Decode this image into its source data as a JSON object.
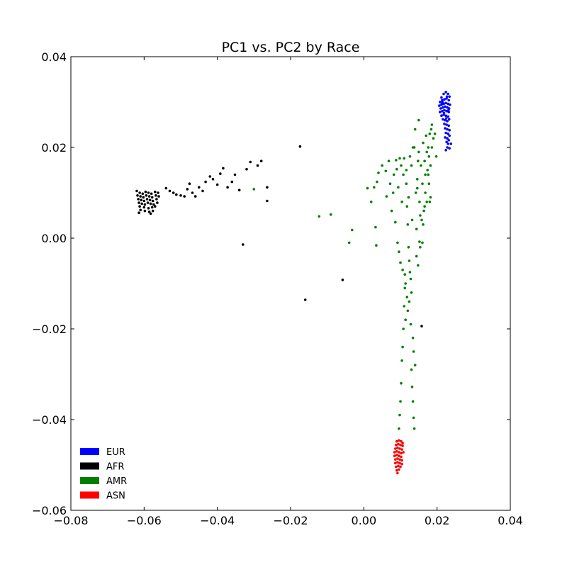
{
  "chart_data": {
    "type": "scatter",
    "title": "PC1 vs. PC2 by Race",
    "xlabel": "",
    "ylabel": "",
    "xlim": [
      -0.08,
      0.04
    ],
    "ylim": [
      -0.06,
      0.04
    ],
    "x_ticks": [
      -0.08,
      -0.06,
      -0.04,
      -0.02,
      0.0,
      0.02,
      0.04
    ],
    "y_ticks": [
      -0.06,
      -0.04,
      -0.02,
      0.0,
      0.02,
      0.04
    ],
    "x_tick_labels": [
      "−0.08",
      "−0.06",
      "−0.04",
      "−0.02",
      "0.00",
      "0.02",
      "0.04"
    ],
    "y_tick_labels": [
      "−0.06",
      "−0.04",
      "−0.02",
      "0.00",
      "0.02",
      "0.04"
    ],
    "grid": false,
    "legend_position": "bottom-left",
    "series": [
      {
        "name": "EUR",
        "color": "#0000ff",
        "points": [
          [
            0.0212,
            0.031
          ],
          [
            0.0218,
            0.0318
          ],
          [
            0.0224,
            0.0322
          ],
          [
            0.023,
            0.0318
          ],
          [
            0.0234,
            0.0312
          ],
          [
            0.0208,
            0.03
          ],
          [
            0.0214,
            0.0304
          ],
          [
            0.022,
            0.0306
          ],
          [
            0.0226,
            0.0308
          ],
          [
            0.0232,
            0.0304
          ],
          [
            0.0206,
            0.0292
          ],
          [
            0.0212,
            0.0294
          ],
          [
            0.0218,
            0.0296
          ],
          [
            0.0224,
            0.0298
          ],
          [
            0.023,
            0.0296
          ],
          [
            0.0235,
            0.0294
          ],
          [
            0.021,
            0.0286
          ],
          [
            0.0216,
            0.0288
          ],
          [
            0.0222,
            0.029
          ],
          [
            0.0228,
            0.0288
          ],
          [
            0.0233,
            0.0286
          ],
          [
            0.0208,
            0.0278
          ],
          [
            0.0214,
            0.028
          ],
          [
            0.022,
            0.0282
          ],
          [
            0.0226,
            0.028
          ],
          [
            0.0232,
            0.0278
          ],
          [
            0.0212,
            0.027
          ],
          [
            0.0218,
            0.0272
          ],
          [
            0.0224,
            0.027
          ],
          [
            0.023,
            0.0268
          ],
          [
            0.0216,
            0.0262
          ],
          [
            0.0222,
            0.026
          ],
          [
            0.0228,
            0.0258
          ],
          [
            0.0233,
            0.0262
          ],
          [
            0.022,
            0.0252
          ],
          [
            0.0226,
            0.025
          ],
          [
            0.0232,
            0.0248
          ],
          [
            0.0222,
            0.0242
          ],
          [
            0.0228,
            0.024
          ],
          [
            0.0234,
            0.0238
          ],
          [
            0.0224,
            0.0232
          ],
          [
            0.023,
            0.023
          ],
          [
            0.0234,
            0.0226
          ],
          [
            0.0222,
            0.0222
          ],
          [
            0.0228,
            0.022
          ],
          [
            0.0232,
            0.0216
          ],
          [
            0.0226,
            0.0212
          ],
          [
            0.023,
            0.0208
          ],
          [
            0.0238,
            0.0208
          ],
          [
            0.0228,
            0.02
          ],
          [
            0.0234,
            0.0198
          ],
          [
            0.0224,
            0.0194
          ],
          [
            0.0215,
            0.03
          ],
          [
            0.0227,
            0.0312
          ],
          [
            0.0219,
            0.0276
          ],
          [
            0.0231,
            0.0282
          ],
          [
            0.0225,
            0.0264
          ],
          [
            0.0213,
            0.0298
          ]
        ]
      },
      {
        "name": "AFR",
        "color": "#000000",
        "points": [
          [
            -0.062,
            0.0104
          ],
          [
            -0.0612,
            0.01
          ],
          [
            -0.0604,
            0.0098
          ],
          [
            -0.0596,
            0.0102
          ],
          [
            -0.0588,
            0.01
          ],
          [
            -0.058,
            0.0098
          ],
          [
            -0.057,
            0.0102
          ],
          [
            -0.0562,
            0.01
          ],
          [
            -0.0618,
            0.0094
          ],
          [
            -0.061,
            0.0092
          ],
          [
            -0.0602,
            0.009
          ],
          [
            -0.0594,
            0.0094
          ],
          [
            -0.0586,
            0.0092
          ],
          [
            -0.0578,
            0.009
          ],
          [
            -0.0568,
            0.0094
          ],
          [
            -0.056,
            0.0092
          ],
          [
            -0.0616,
            0.0086
          ],
          [
            -0.0608,
            0.0084
          ],
          [
            -0.06,
            0.0082
          ],
          [
            -0.0592,
            0.0086
          ],
          [
            -0.0584,
            0.0084
          ],
          [
            -0.0576,
            0.0082
          ],
          [
            -0.0566,
            0.0086
          ],
          [
            -0.0614,
            0.0078
          ],
          [
            -0.0606,
            0.0076
          ],
          [
            -0.0598,
            0.0074
          ],
          [
            -0.059,
            0.0078
          ],
          [
            -0.0582,
            0.0076
          ],
          [
            -0.0574,
            0.0074
          ],
          [
            -0.0564,
            0.0078
          ],
          [
            -0.0612,
            0.007
          ],
          [
            -0.06,
            0.0068
          ],
          [
            -0.0588,
            0.0066
          ],
          [
            -0.0578,
            0.0068
          ],
          [
            -0.057,
            0.007
          ],
          [
            -0.061,
            0.0062
          ],
          [
            -0.0598,
            0.006
          ],
          [
            -0.0586,
            0.0058
          ],
          [
            -0.0576,
            0.006
          ],
          [
            -0.0614,
            0.0056
          ],
          [
            -0.0582,
            0.0054
          ],
          [
            -0.054,
            0.011
          ],
          [
            -0.053,
            0.0104
          ],
          [
            -0.052,
            0.01
          ],
          [
            -0.0512,
            0.0096
          ],
          [
            -0.05,
            0.0094
          ],
          [
            -0.049,
            0.0092
          ],
          [
            -0.0482,
            0.0108
          ],
          [
            -0.0476,
            0.012
          ],
          [
            -0.0468,
            0.01
          ],
          [
            -0.046,
            0.0092
          ],
          [
            -0.045,
            0.0112
          ],
          [
            -0.044,
            0.0104
          ],
          [
            -0.0432,
            0.0124
          ],
          [
            -0.042,
            0.0136
          ],
          [
            -0.0412,
            0.013
          ],
          [
            -0.04,
            0.0118
          ],
          [
            -0.0392,
            0.0142
          ],
          [
            -0.0384,
            0.0154
          ],
          [
            -0.0372,
            0.0112
          ],
          [
            -0.036,
            0.0124
          ],
          [
            -0.0352,
            0.014
          ],
          [
            -0.034,
            0.0106
          ],
          [
            -0.032,
            0.0152
          ],
          [
            -0.031,
            0.0168
          ],
          [
            -0.029,
            0.016
          ],
          [
            -0.028,
            0.017
          ],
          [
            -0.0264,
            0.0112
          ],
          [
            -0.0264,
            0.0082
          ],
          [
            -0.033,
            -0.0014
          ],
          [
            -0.0174,
            0.0202
          ],
          [
            -0.016,
            -0.0136
          ],
          [
            -0.0058,
            -0.0092
          ],
          [
            0.0158,
            -0.0194
          ]
        ]
      },
      {
        "name": "AMR",
        "color": "#008000",
        "points": [
          [
            -0.03,
            0.0108
          ],
          [
            -0.0122,
            0.0048
          ],
          [
            -0.009,
            0.0052
          ],
          [
            -0.004,
            -0.001
          ],
          [
            -0.0032,
            0.0018
          ],
          [
            0.001,
            0.011
          ],
          [
            0.002,
            0.008
          ],
          [
            0.0028,
            0.0112
          ],
          [
            0.0032,
            0.0024
          ],
          [
            0.0034,
            -0.0016
          ],
          [
            0.0036,
            0.0124
          ],
          [
            0.004,
            0.0144
          ],
          [
            0.005,
            0.016
          ],
          [
            0.006,
            0.0148
          ],
          [
            0.0062,
            0.0092
          ],
          [
            0.0068,
            0.017
          ],
          [
            0.0072,
            0.012
          ],
          [
            0.0076,
            0.006
          ],
          [
            0.008,
            0.01
          ],
          [
            0.0082,
            0.014
          ],
          [
            0.0086,
            0.0035
          ],
          [
            0.0088,
            0.0172
          ],
          [
            0.009,
            0.0152
          ],
          [
            0.0092,
            -0.001
          ],
          [
            0.0094,
            0.0112
          ],
          [
            0.0096,
            -0.003
          ],
          [
            0.0098,
            0.0176
          ],
          [
            0.01,
            -0.0054
          ],
          [
            0.0102,
            0.016
          ],
          [
            0.0104,
            0.008
          ],
          [
            0.0106,
            -0.007
          ],
          [
            0.0108,
            0.014
          ],
          [
            0.011,
            0.0176
          ],
          [
            0.0112,
            -0.008
          ],
          [
            0.0114,
            -0.01
          ],
          [
            0.0116,
            0.012
          ],
          [
            0.0118,
            -0.013
          ],
          [
            0.012,
            -0.016
          ],
          [
            0.0122,
            0.009
          ],
          [
            0.0124,
            -0.014
          ],
          [
            0.0126,
            0.018
          ],
          [
            0.0128,
            -0.019
          ],
          [
            0.013,
            0.016
          ],
          [
            0.0132,
            0.004
          ],
          [
            0.0134,
            -0.022
          ],
          [
            0.0136,
            -0.025
          ],
          [
            0.0138,
            0.02
          ],
          [
            0.014,
            -0.028
          ],
          [
            0.0142,
            0.01
          ],
          [
            0.0144,
            -0.004
          ],
          [
            0.0146,
            0.013
          ],
          [
            0.0148,
            -0.006
          ],
          [
            0.015,
            0.019
          ],
          [
            0.0152,
            0.008
          ],
          [
            0.0154,
            -0.002
          ],
          [
            0.0156,
            0.016
          ],
          [
            0.0158,
            0.004
          ],
          [
            0.016,
            0.012
          ],
          [
            0.0162,
            0.021
          ],
          [
            0.0164,
            0.006
          ],
          [
            0.0166,
            0.017
          ],
          [
            0.0168,
            0.01
          ],
          [
            0.017,
            0.0226
          ],
          [
            0.0172,
            0.008
          ],
          [
            0.0174,
            0.015
          ],
          [
            0.0176,
            0.02
          ],
          [
            0.0178,
            0.012
          ],
          [
            0.018,
            0.023
          ],
          [
            0.0182,
            0.016
          ],
          [
            0.0184,
            0.024
          ],
          [
            0.0186,
            0.025
          ],
          [
            0.019,
            0.022
          ],
          [
            0.0194,
            0.023
          ],
          [
            0.0198,
            0.018
          ],
          [
            0.015,
            0.026
          ],
          [
            0.014,
            0.024
          ],
          [
            0.0134,
            0.02
          ],
          [
            0.013,
            -0.012
          ],
          [
            0.0128,
            -0.009
          ],
          [
            0.0126,
            -0.0075
          ],
          [
            0.0124,
            -0.005
          ],
          [
            0.0122,
            -0.002
          ],
          [
            0.012,
            0.003
          ],
          [
            0.0118,
            0.007
          ],
          [
            0.0116,
            0.015
          ],
          [
            0.0114,
            -0.018
          ],
          [
            0.0112,
            -0.011
          ],
          [
            0.011,
            -0.015
          ],
          [
            0.0108,
            -0.02
          ],
          [
            0.0106,
            -0.024
          ],
          [
            0.0104,
            -0.027
          ],
          [
            0.0102,
            -0.032
          ],
          [
            0.01,
            -0.036
          ],
          [
            0.0098,
            -0.039
          ],
          [
            0.0096,
            -0.042
          ],
          [
            0.013,
            -0.029
          ],
          [
            0.0132,
            -0.0328
          ],
          [
            0.0134,
            -0.036
          ],
          [
            0.0136,
            -0.0396
          ],
          [
            0.0138,
            -0.042
          ],
          [
            0.0144,
            0.002
          ],
          [
            0.0146,
            0.011
          ],
          [
            0.0148,
            0.017
          ],
          [
            0.0152,
            -0.0008
          ],
          [
            0.0154,
            0.005
          ],
          [
            0.016,
            -0.001
          ],
          [
            0.0162,
            0.003
          ],
          [
            0.0166,
            0.007
          ],
          [
            0.0168,
            0.014
          ],
          [
            0.0172,
            0.019
          ],
          [
            0.0176,
            0.014
          ],
          [
            0.0178,
            0.018
          ],
          [
            0.018,
            0.008
          ],
          [
            0.0182,
            0.009
          ],
          [
            0.0186,
            0.02
          ]
        ]
      },
      {
        "name": "ASN",
        "color": "#ff0000",
        "points": [
          [
            0.009,
            -0.0448
          ],
          [
            0.0096,
            -0.0446
          ],
          [
            0.0102,
            -0.0448
          ],
          [
            0.0106,
            -0.0452
          ],
          [
            0.0088,
            -0.0456
          ],
          [
            0.0094,
            -0.0454
          ],
          [
            0.01,
            -0.0456
          ],
          [
            0.0106,
            -0.0458
          ],
          [
            0.0086,
            -0.0464
          ],
          [
            0.0092,
            -0.0462
          ],
          [
            0.0098,
            -0.0464
          ],
          [
            0.0104,
            -0.0466
          ],
          [
            0.0084,
            -0.0472
          ],
          [
            0.009,
            -0.047
          ],
          [
            0.0096,
            -0.0472
          ],
          [
            0.0102,
            -0.0474
          ],
          [
            0.0108,
            -0.0472
          ],
          [
            0.0084,
            -0.048
          ],
          [
            0.009,
            -0.0478
          ],
          [
            0.0096,
            -0.048
          ],
          [
            0.0102,
            -0.0482
          ],
          [
            0.0086,
            -0.0488
          ],
          [
            0.0092,
            -0.0486
          ],
          [
            0.0098,
            -0.0488
          ],
          [
            0.0104,
            -0.049
          ],
          [
            0.0086,
            -0.0496
          ],
          [
            0.0092,
            -0.0494
          ],
          [
            0.0098,
            -0.0496
          ],
          [
            0.0104,
            -0.0498
          ],
          [
            0.0088,
            -0.0504
          ],
          [
            0.0094,
            -0.0502
          ],
          [
            0.01,
            -0.0504
          ],
          [
            0.009,
            -0.0512
          ],
          [
            0.0096,
            -0.051
          ],
          [
            0.0092,
            -0.0518
          ]
        ]
      }
    ]
  }
}
